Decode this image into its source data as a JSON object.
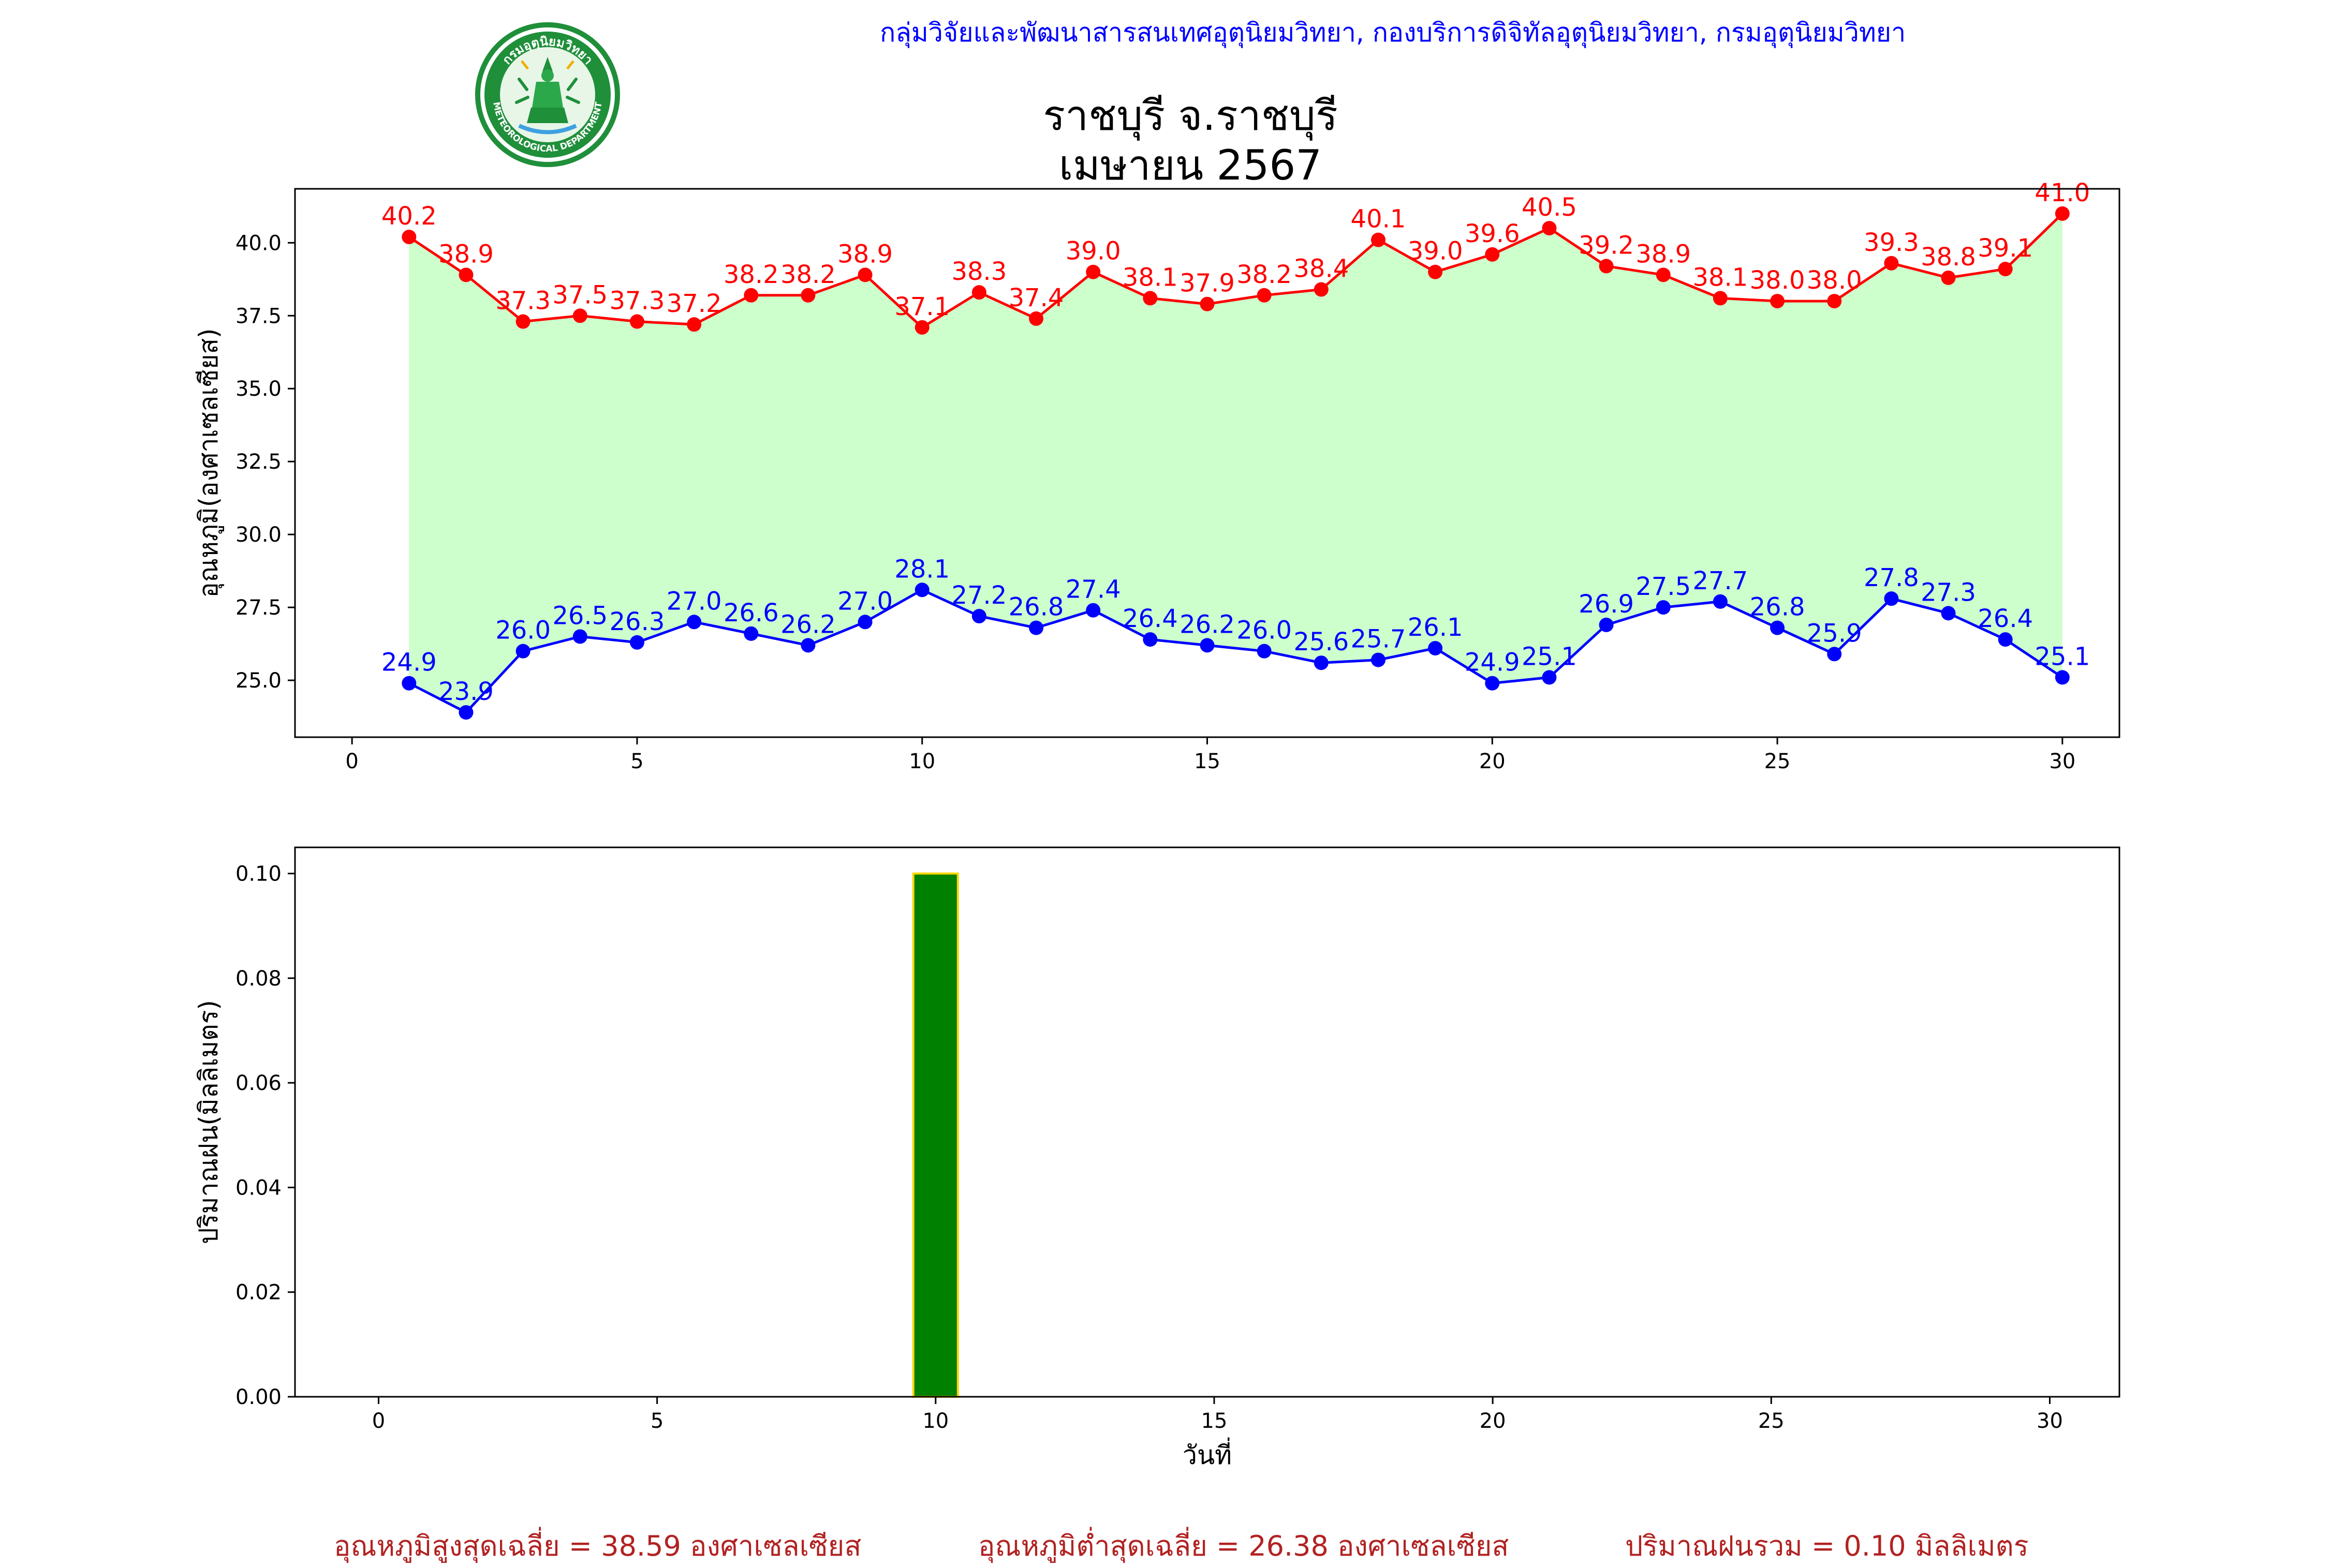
{
  "header": {
    "org_line": "กลุ่มวิจัยและพัฒนาสารสนเทศอุตุนิยมวิทยา, กองบริการดิจิทัลอุตุนิยมวิทยา, กรมอุตุนิยมวิทยา",
    "title_line1": "ราชบุรี จ.ราชบุรี",
    "title_line2": "เมษายน 2567",
    "logo_top_text": "กรมอุตุนิยมวิทยา",
    "logo_bottom_text": "METEOROLOGICAL DEPARTMENT"
  },
  "chart_data": [
    {
      "type": "line",
      "ylabel": "อุณหภูมิ(องศาเซลเซียส)",
      "xlabel": "",
      "xlim": [
        -1,
        31
      ],
      "ylim": [
        23.05,
        41.85
      ],
      "xticks": [
        0,
        5,
        10,
        15,
        20,
        25,
        30
      ],
      "yticks": [
        25.0,
        27.5,
        30.0,
        32.5,
        35.0,
        37.5,
        40.0
      ],
      "x": [
        1,
        2,
        3,
        4,
        5,
        6,
        7,
        8,
        9,
        10,
        11,
        12,
        13,
        14,
        15,
        16,
        17,
        18,
        19,
        20,
        21,
        22,
        23,
        24,
        25,
        26,
        27,
        28,
        29,
        30
      ],
      "fill_between": {
        "color": "#ccffcc",
        "lower_series": "min",
        "upper_series": "max"
      },
      "series": [
        {
          "key": "max",
          "color": "#ff0000",
          "values": [
            40.2,
            38.9,
            37.3,
            37.5,
            37.3,
            37.2,
            38.2,
            38.2,
            38.9,
            37.1,
            38.3,
            37.4,
            39.0,
            38.1,
            37.9,
            38.2,
            38.4,
            40.1,
            39.0,
            39.6,
            40.5,
            39.2,
            38.9,
            38.1,
            38.0,
            38.0,
            39.3,
            38.8,
            39.1,
            41.0
          ]
        },
        {
          "key": "min",
          "color": "#0000ff",
          "values": [
            24.9,
            23.9,
            26.0,
            26.5,
            26.3,
            27.0,
            26.6,
            26.2,
            27.0,
            28.1,
            27.2,
            26.8,
            27.4,
            26.4,
            26.2,
            26.0,
            25.6,
            25.7,
            26.1,
            24.9,
            25.1,
            26.9,
            27.5,
            27.7,
            26.8,
            25.9,
            27.8,
            27.3,
            26.4,
            25.1
          ]
        }
      ]
    },
    {
      "type": "bar",
      "ylabel": "ปริมาณฝน(มิลลิเมตร)",
      "xlabel": "วันที่",
      "xlim": [
        -1.5,
        31.25
      ],
      "ylim": [
        0,
        0.105
      ],
      "xticks": [
        0,
        5,
        10,
        15,
        20,
        25,
        30
      ],
      "yticks": [
        0.0,
        0.02,
        0.04,
        0.06,
        0.08,
        0.1
      ],
      "bar_color": "#008000",
      "bar_edge_color": "#ffd700",
      "x": [
        1,
        2,
        3,
        4,
        5,
        6,
        7,
        8,
        9,
        10,
        11,
        12,
        13,
        14,
        15,
        16,
        17,
        18,
        19,
        20,
        21,
        22,
        23,
        24,
        25,
        26,
        27,
        28,
        29,
        30
      ],
      "values": [
        0,
        0,
        0,
        0,
        0,
        0,
        0,
        0,
        0,
        0.1,
        0,
        0,
        0,
        0,
        0,
        0,
        0,
        0,
        0,
        0,
        0,
        0,
        0,
        0,
        0,
        0,
        0,
        0,
        0,
        0
      ]
    }
  ],
  "summary": {
    "avg_max_label": "อุณหภูมิสูงสุดเฉลี่ย = ",
    "avg_max_value": "38.59",
    "avg_max_unit": " องศาเซลเซียส",
    "avg_min_label": "อุณหภูมิต่ำสุดเฉลี่ย = ",
    "avg_min_value": "26.38",
    "avg_min_unit": " องศาเซลเซียส",
    "rain_total_label": "ปริมาณฝนรวม = ",
    "rain_total_value": "0.10",
    "rain_total_unit": " มิลลิเมตร"
  },
  "colors": {
    "header_text": "#0000ff",
    "summary_text": "#b22222",
    "max_line": "#ff0000",
    "min_line": "#0000ff",
    "fill": "#ccffcc",
    "rain_bar": "#008000",
    "rain_bar_edge": "#ffd700"
  }
}
